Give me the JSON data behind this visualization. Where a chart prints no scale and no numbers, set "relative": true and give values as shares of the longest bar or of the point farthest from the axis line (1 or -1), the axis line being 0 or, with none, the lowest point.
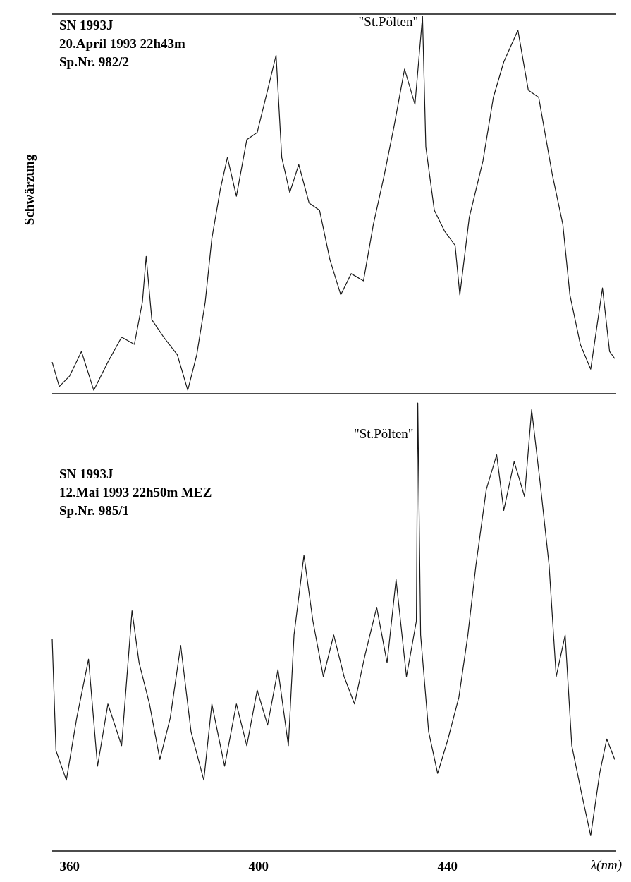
{
  "chart_data": [
    {
      "type": "line",
      "relative": true,
      "ylabel": "Schwärzung",
      "xlim": [
        356.3,
        475.7
      ],
      "tick_labels": false,
      "annotations": [
        "SN 1993J",
        "20.April 1993 22h43m",
        "Sp.Nr. 982/2",
        {
          "text": "\"St.Pölten\"",
          "x": 434.7,
          "y": 1.0
        }
      ],
      "series": [
        {
          "color": "#1a1a1a",
          "x": [
            356.3,
            357.8,
            360,
            362.5,
            365.1,
            368.1,
            371.0,
            373.7,
            375.4,
            376.2,
            377.4,
            379.9,
            382.8,
            385.0,
            386.9,
            388.7,
            390.1,
            391.9,
            393.4,
            395.3,
            397.5,
            399.7,
            401.9,
            403.7,
            404.9,
            406.6,
            408.5,
            410.7,
            412.9,
            415.1,
            417.4,
            419.6,
            422.2,
            424.3,
            426.6,
            428.7,
            430.9,
            433.1,
            434.7,
            435.4,
            437.2,
            439.4,
            441.6,
            442.6,
            444.6,
            447.5,
            449.7,
            451.9,
            454.9,
            457.1,
            459.3,
            462.2,
            464.4,
            465.9,
            468.1,
            470.3,
            472.8,
            474.3,
            475.4
          ],
          "values": [
            0.084,
            0.019,
            0.047,
            0.112,
            0.009,
            0.084,
            0.15,
            0.131,
            0.243,
            0.364,
            0.196,
            0.15,
            0.103,
            0.009,
            0.103,
            0.243,
            0.411,
            0.542,
            0.626,
            0.523,
            0.673,
            0.692,
            0.804,
            0.897,
            0.626,
            0.533,
            0.607,
            0.505,
            0.486,
            0.355,
            0.262,
            0.318,
            0.299,
            0.449,
            0.579,
            0.71,
            0.86,
            0.766,
            1.0,
            0.654,
            0.486,
            0.43,
            0.393,
            0.262,
            0.467,
            0.617,
            0.785,
            0.879,
            0.963,
            0.804,
            0.785,
            0.579,
            0.449,
            0.262,
            0.131,
            0.065,
            0.28,
            0.112,
            0.093
          ]
        }
      ]
    },
    {
      "type": "line",
      "relative": true,
      "xlabel": "λ(nm)",
      "xlim": [
        356.3,
        475.7
      ],
      "xticks": [
        360,
        400,
        440
      ],
      "tick_labels": "x",
      "annotations": [
        "SN 1993J",
        "12.Mai 1993 22h50m MEZ",
        "Sp.Nr. 985/1",
        {
          "text": "\"St.Pölten\"",
          "x": 433.7,
          "y": 1.0
        }
      ],
      "series": [
        {
          "color": "#1a1a1a",
          "x": [
            356.3,
            357.1,
            359.3,
            361.5,
            364.0,
            365.9,
            368.1,
            371.0,
            373.2,
            374.7,
            376.9,
            379.1,
            381.3,
            383.5,
            385.7,
            388.4,
            390.1,
            392.8,
            395.3,
            397.5,
            399.7,
            401.9,
            404.1,
            406.3,
            407.5,
            409.6,
            411.5,
            413.7,
            415.9,
            418.1,
            420.3,
            422.5,
            425.0,
            427.2,
            429.1,
            431.3,
            433.4,
            433.7,
            434.3,
            436.0,
            437.9,
            440.1,
            442.4,
            444.3,
            446.0,
            448.2,
            450.4,
            451.9,
            454.1,
            456.3,
            457.8,
            459.6,
            461.5,
            463.0,
            464.9,
            466.3,
            468.4,
            470.3,
            472.2,
            473.7,
            475.4
          ],
          "values": [
            0.474,
            0.224,
            0.158,
            0.297,
            0.428,
            0.189,
            0.328,
            0.235,
            0.536,
            0.42,
            0.328,
            0.204,
            0.297,
            0.459,
            0.266,
            0.158,
            0.328,
            0.189,
            0.328,
            0.235,
            0.359,
            0.281,
            0.405,
            0.235,
            0.482,
            0.66,
            0.513,
            0.389,
            0.482,
            0.389,
            0.328,
            0.436,
            0.544,
            0.42,
            0.606,
            0.389,
            0.513,
            1.0,
            0.482,
            0.266,
            0.173,
            0.25,
            0.343,
            0.482,
            0.637,
            0.807,
            0.884,
            0.76,
            0.869,
            0.791,
            0.985,
            0.822,
            0.637,
            0.389,
            0.482,
            0.235,
            0.127,
            0.034,
            0.173,
            0.25,
            0.204
          ]
        }
      ]
    }
  ]
}
